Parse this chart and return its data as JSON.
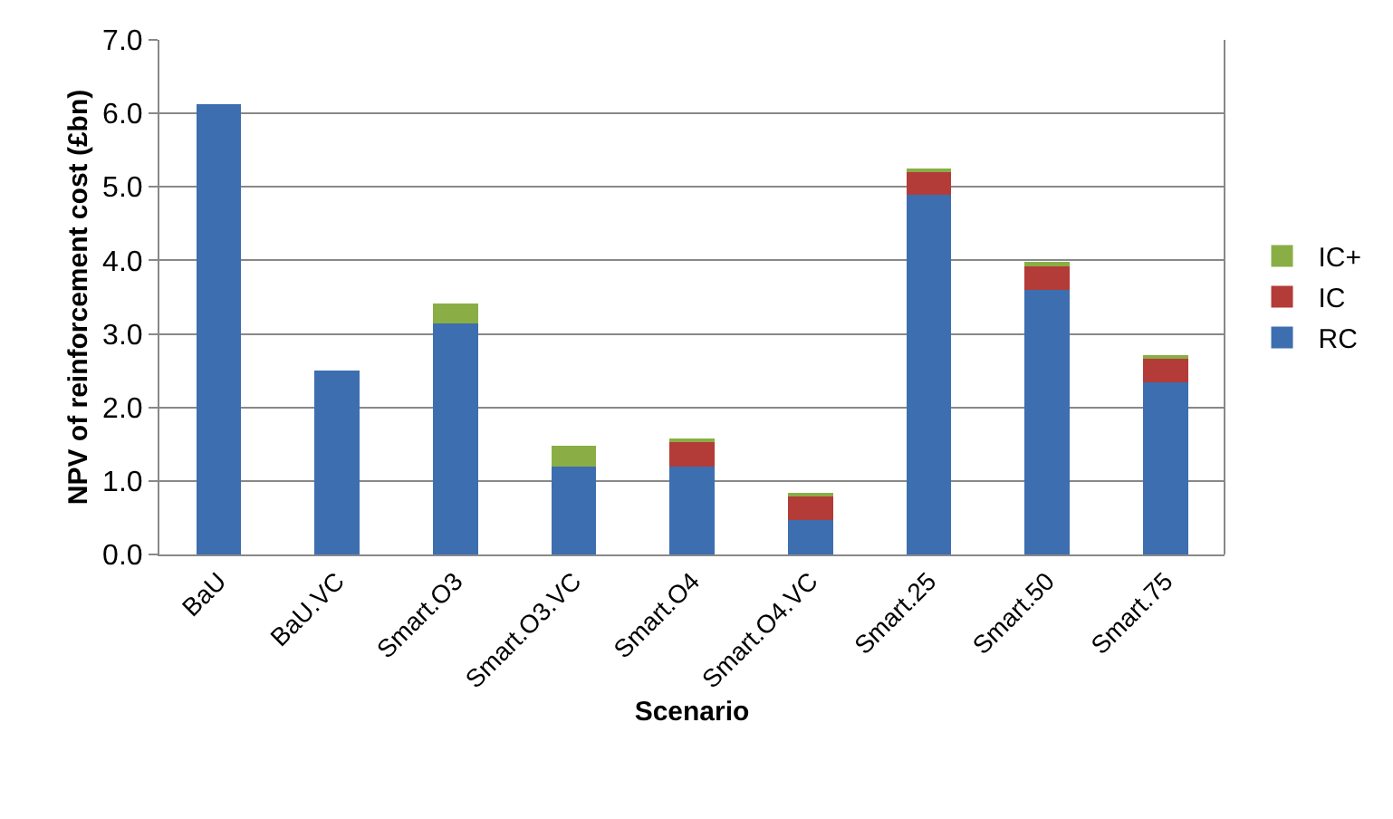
{
  "chart_data": {
    "type": "bar",
    "stacked": true,
    "xlabel": "Scenario",
    "ylabel": "NPV of reinforcement cost (£bn)",
    "categories": [
      "BaU",
      "BaU.VC",
      "Smart.O3",
      "Smart.O3.VC",
      "Smart.O4",
      "Smart.O4.VC",
      "Smart.25",
      "Smart.50",
      "Smart.75"
    ],
    "series": [
      {
        "name": "RC",
        "color": "#3d6eb0",
        "values": [
          6.12,
          2.5,
          3.14,
          1.19,
          1.19,
          0.47,
          4.89,
          3.6,
          2.34
        ]
      },
      {
        "name": "IC",
        "color": "#b33b38",
        "values": [
          0,
          0,
          0,
          0,
          0.34,
          0.32,
          0.32,
          0.32,
          0.33
        ]
      },
      {
        "name": "IC+",
        "color": "#8aae45",
        "values": [
          0,
          0,
          0.27,
          0.29,
          0.04,
          0.05,
          0.02,
          0.06,
          0.02
        ]
      }
    ],
    "ylim": [
      0,
      7
    ],
    "yticks": [
      {
        "value": 0,
        "label": "0.0"
      },
      {
        "value": 1,
        "label": "1.0"
      },
      {
        "value": 2,
        "label": "2.0"
      },
      {
        "value": 3,
        "label": "3.0"
      },
      {
        "value": 4,
        "label": "4.0"
      },
      {
        "value": 5,
        "label": "5.0"
      },
      {
        "value": 6,
        "label": "6.0"
      },
      {
        "value": 7,
        "label": "7.0"
      }
    ],
    "grid": "y",
    "legend": "right"
  }
}
